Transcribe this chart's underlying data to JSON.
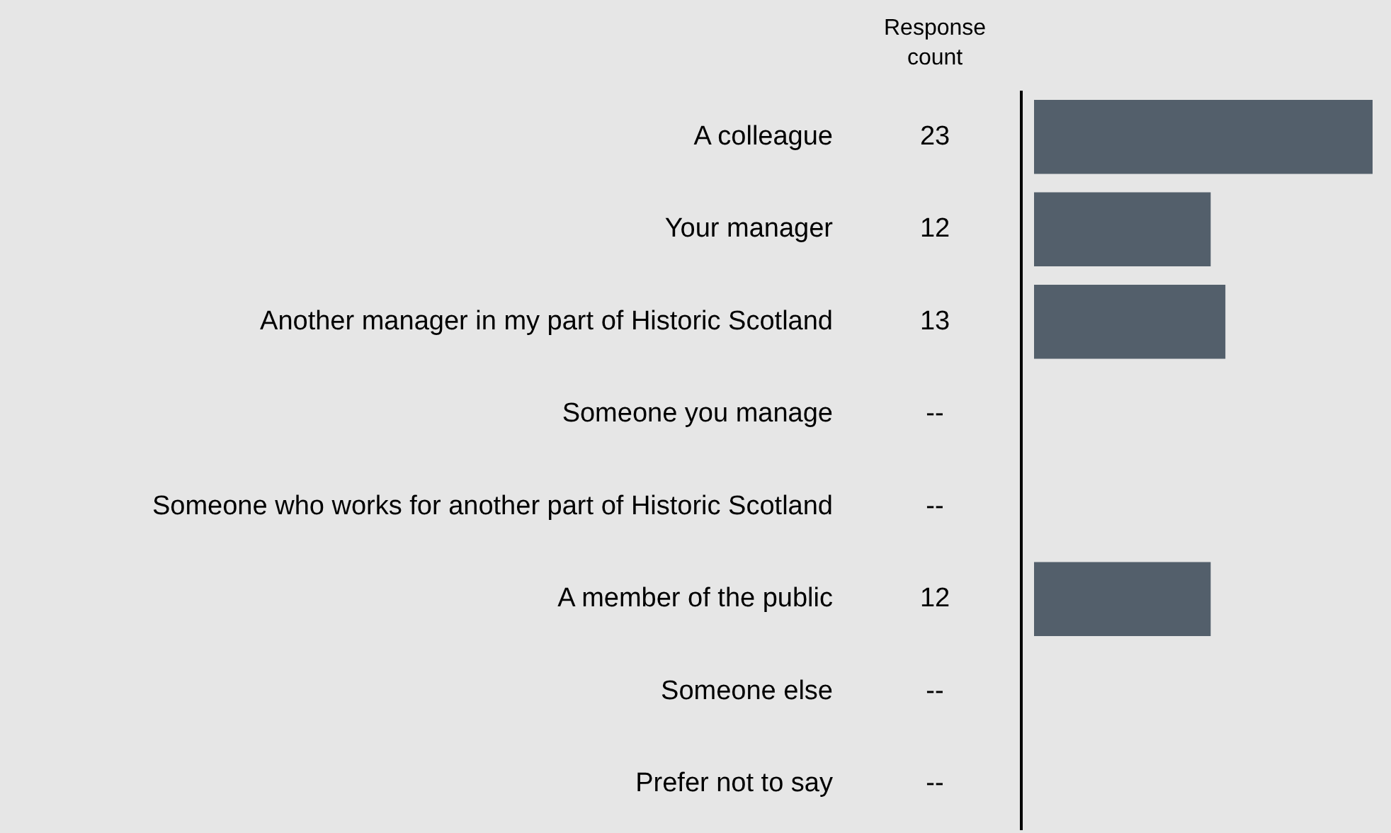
{
  "chart_data": {
    "type": "bar",
    "orientation": "horizontal",
    "categories": [
      "A colleague",
      "Your manager",
      "Another manager in my part of Historic Scotland",
      "Someone you manage",
      "Someone who works for another part of Historic Scotland",
      "A member of the public",
      "Someone else",
      "Prefer not to say"
    ],
    "values": [
      23,
      12,
      13,
      null,
      null,
      12,
      null,
      null
    ],
    "value_labels": [
      "23",
      "12",
      "13",
      "--",
      "--",
      "12",
      "--",
      "--"
    ],
    "color": "#535f6b",
    "annotations": [
      "Response count"
    ]
  }
}
